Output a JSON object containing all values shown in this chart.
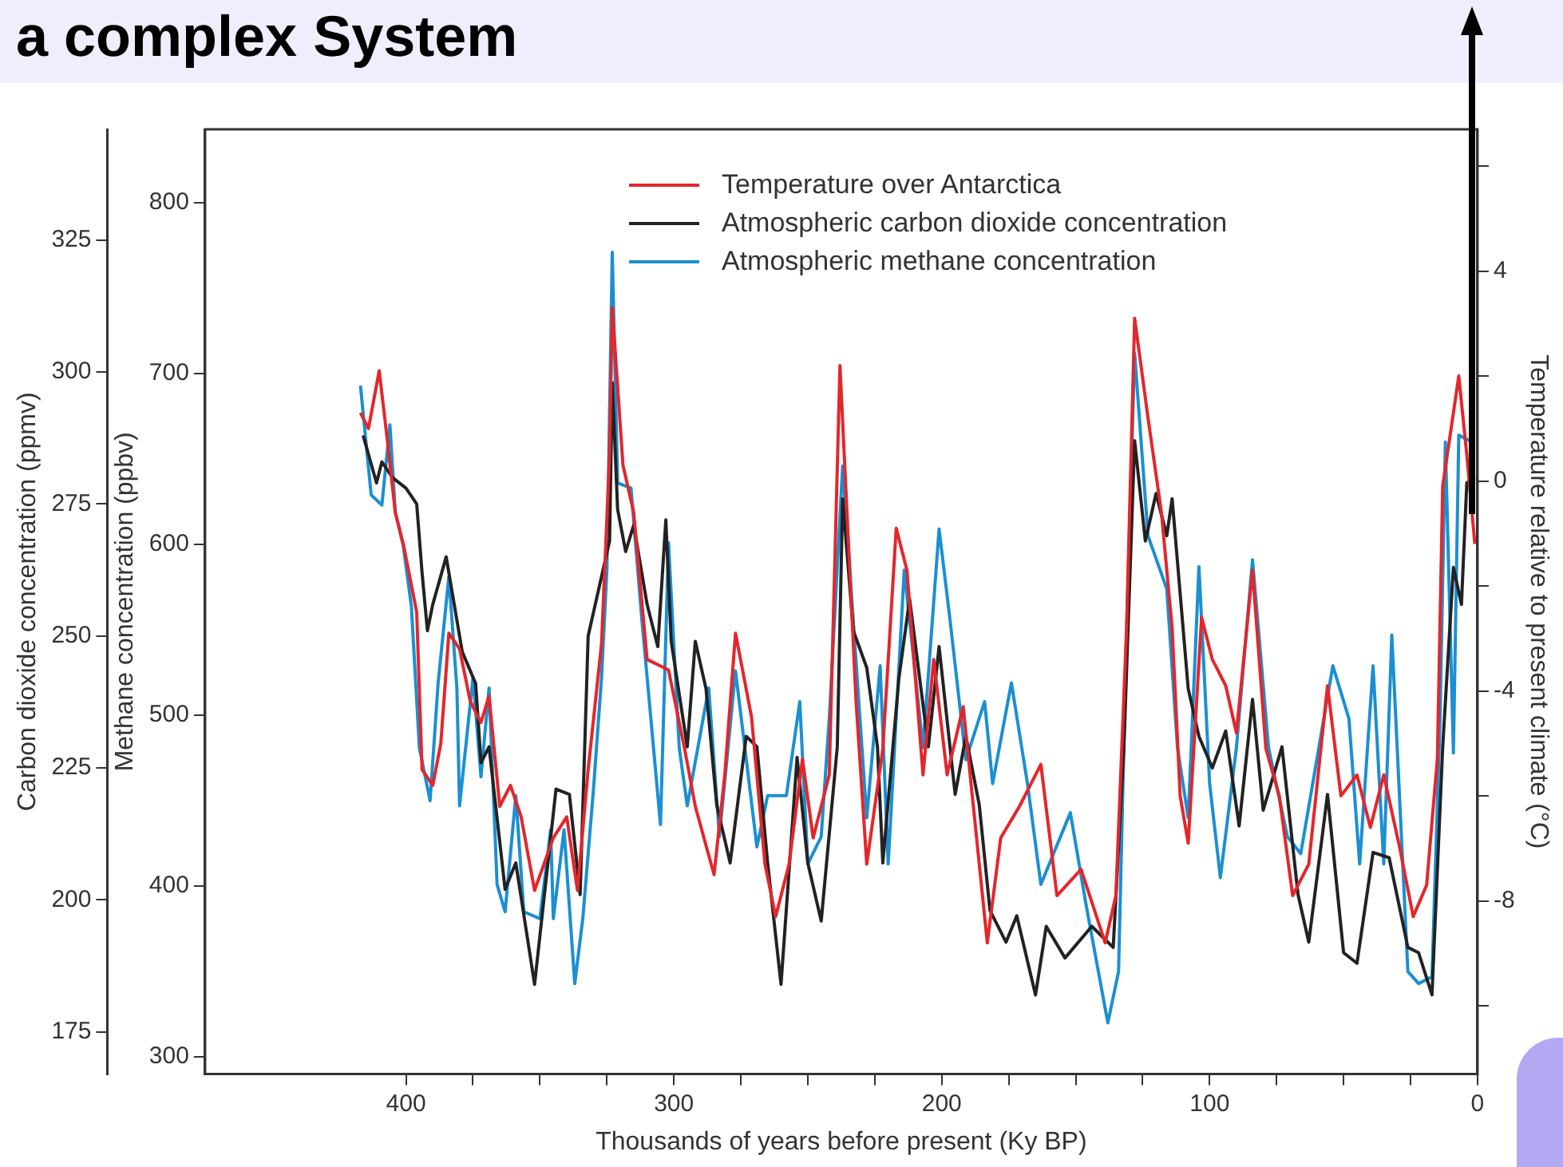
{
  "chart_data": {
    "type": "line",
    "title": "a complex System",
    "xlabel": "Thousands of years before present (Ky BP)",
    "ylabel": "Carbon dioxide concentration (ppmv)",
    "y3label": "Methane concentration (ppbv)",
    "y2label": "Temperature relative to present climate (°C)",
    "xlim": [
      475,
      0
    ],
    "xticks": [
      400,
      {
        "value": 375,
        "label": null
      },
      {
        "value": 350,
        "label": null
      },
      {
        "value": 325,
        "label": null
      },
      300,
      {
        "value": 275,
        "label": null
      },
      {
        "value": 250,
        "label": null
      },
      {
        "value": 225,
        "label": null
      },
      200,
      {
        "value": 175,
        "label": null
      },
      {
        "value": 150,
        "label": null
      },
      {
        "value": 125,
        "label": null
      },
      100,
      {
        "value": 75,
        "label": null
      },
      {
        "value": 50,
        "label": null
      },
      {
        "value": 25,
        "label": null
      },
      0
    ],
    "ylim": [
      167,
      346
    ],
    "yticks": [
      175,
      200,
      225,
      250,
      275,
      300,
      325
    ],
    "y3lim": [
      290,
      843
    ],
    "y3ticks": [
      300,
      400,
      500,
      600,
      700,
      800
    ],
    "y2lim": [
      -11.3,
      6.7
    ],
    "y2ticks": [
      {
        "value": 6,
        "label": null
      },
      4,
      {
        "value": 2,
        "label": null
      },
      0,
      {
        "value": -2,
        "label": null
      },
      -4,
      {
        "value": -6,
        "label": null
      },
      -8,
      {
        "value": -10,
        "label": null
      }
    ],
    "grid": false,
    "legend": "top",
    "marker": "none",
    "line_style": "solid",
    "series": [
      {
        "name": "Temperature over Antarctica",
        "color": "#e4262b",
        "axis": "y2",
        "x": [
          417,
          414,
          410,
          407,
          404,
          401,
          396,
          394,
          390,
          387,
          384,
          380,
          376,
          372,
          369,
          365,
          361,
          357,
          352,
          345,
          340,
          336,
          332,
          327,
          324,
          323,
          319,
          315,
          310,
          302,
          296,
          292,
          285,
          281,
          277,
          271,
          266,
          262,
          257,
          252,
          248,
          242,
          238,
          232,
          228,
          222,
          217,
          213,
          207,
          203,
          198,
          192,
          186,
          183,
          178,
          171,
          163,
          157,
          148,
          139,
          135,
          131,
          128,
          123,
          118,
          114,
          111,
          108,
          103,
          99,
          94,
          90,
          84,
          79,
          74,
          69,
          63,
          56,
          51,
          45,
          40,
          35,
          29,
          24,
          19,
          15,
          13,
          7,
          4,
          1
        ],
        "values": [
          1.3,
          1.0,
          2.1,
          0.8,
          -0.6,
          -1.2,
          -2.5,
          -5.5,
          -5.8,
          -5.0,
          -2.9,
          -3.2,
          -4.2,
          -4.6,
          -4.1,
          -6.2,
          -5.8,
          -6.4,
          -7.8,
          -6.8,
          -6.4,
          -7.8,
          -5.5,
          -3.1,
          0.5,
          3.3,
          0.3,
          -0.6,
          -3.4,
          -3.6,
          -5.1,
          -6.2,
          -7.5,
          -5.6,
          -2.9,
          -4.5,
          -7.3,
          -8.3,
          -7.3,
          -5.3,
          -6.8,
          -5.6,
          2.2,
          -4.2,
          -7.3,
          -5.1,
          -0.9,
          -1.7,
          -5.6,
          -3.4,
          -5.6,
          -4.3,
          -7.3,
          -8.8,
          -6.8,
          -6.2,
          -5.4,
          -7.9,
          -7.4,
          -8.8,
          -7.9,
          -2.8,
          3.1,
          1.2,
          -0.6,
          -2.8,
          -6.0,
          -6.9,
          -2.6,
          -3.4,
          -3.9,
          -4.8,
          -1.7,
          -5.1,
          -6.0,
          -7.9,
          -7.3,
          -3.9,
          -6.0,
          -5.6,
          -6.6,
          -5.6,
          -7.0,
          -8.3,
          -7.7,
          -5.3,
          -0.1,
          2.0,
          0.5,
          -1.2
        ]
      },
      {
        "name": "Atmospheric carbon dioxide concentration",
        "color": "#222222",
        "axis": "y",
        "x": [
          416,
          411,
          409,
          405,
          400,
          396,
          394,
          392,
          390,
          385,
          382,
          379,
          374,
          372,
          369,
          363,
          359,
          352,
          344,
          339,
          335,
          332,
          324,
          323,
          321,
          318,
          315,
          310,
          306,
          303,
          301,
          295,
          292,
          288,
          284,
          279,
          273,
          269,
          265,
          260,
          254,
          250,
          245,
          239,
          237,
          233,
          228,
          224,
          222,
          216,
          212,
          205,
          201,
          195,
          191,
          186,
          182,
          176,
          172,
          165,
          161,
          154,
          144,
          136,
          132,
          128,
          124,
          120,
          116,
          114,
          108,
          104,
          99,
          94,
          89,
          84,
          80,
          73,
          67,
          63,
          56,
          50,
          45,
          39,
          33,
          26,
          22,
          17,
          13,
          9,
          6,
          4,
          1
        ],
        "values": [
          288,
          279,
          283,
          280,
          278,
          275,
          262,
          251,
          256,
          265,
          256,
          247,
          241,
          226,
          229,
          202,
          207,
          184,
          221,
          220,
          201,
          250,
          268,
          298,
          274,
          266,
          271,
          256,
          248,
          272,
          249,
          229,
          249,
          240,
          218,
          207,
          231,
          229,
          207,
          184,
          227,
          207,
          196,
          229,
          276,
          251,
          244,
          229,
          207,
          242,
          257,
          229,
          248,
          220,
          231,
          218,
          198,
          192,
          197,
          182,
          195,
          189,
          195,
          191,
          229,
          287,
          268,
          277,
          269,
          276,
          240,
          231,
          225,
          232,
          214,
          238,
          217,
          229,
          201,
          192,
          220,
          190,
          188,
          209,
          208,
          191,
          190,
          182,
          229,
          263,
          256,
          279,
          280
        ]
      },
      {
        "name": "Atmospheric methane concentration",
        "color": "#1b8fd2",
        "axis": "y3",
        "x": [
          417,
          413,
          409,
          406,
          404,
          401,
          398,
          395,
          391,
          388,
          384,
          381,
          380,
          375,
          372,
          369,
          366,
          363,
          359,
          356,
          350,
          346,
          345,
          341,
          337,
          334,
          330,
          327,
          325,
          323,
          321,
          316,
          312,
          305,
          302,
          298,
          295,
          287,
          283,
          277,
          269,
          265,
          258,
          253,
          250,
          245,
          242,
          237,
          228,
          223,
          220,
          214,
          207,
          201,
          197,
          191,
          184,
          181,
          174,
          168,
          163,
          152,
          146,
          138,
          134,
          131,
          128,
          123,
          116,
          112,
          108,
          104,
          100,
          96,
          90,
          84,
          78,
          71,
          66,
          54,
          48,
          44,
          39,
          35,
          32,
          26,
          22,
          17,
          14,
          12,
          9,
          7,
          2
        ],
        "values": [
          693,
          629,
          623,
          670,
          619,
          599,
          564,
          481,
          450,
          519,
          581,
          516,
          447,
          522,
          464,
          516,
          401,
          385,
          453,
          385,
          381,
          433,
          381,
          433,
          343,
          381,
          457,
          522,
          585,
          771,
          636,
          633,
          557,
          436,
          601,
          481,
          447,
          516,
          429,
          526,
          423,
          453,
          453,
          508,
          413,
          429,
          498,
          646,
          440,
          529,
          413,
          585,
          481,
          609,
          557,
          474,
          508,
          460,
          519,
          460,
          401,
          443,
          388,
          320,
          350,
          550,
          712,
          605,
          574,
          481,
          440,
          587,
          460,
          405,
          481,
          591,
          481,
          429,
          419,
          529,
          498,
          413,
          529,
          413,
          547,
          350,
          343,
          347,
          498,
          660,
          478,
          664,
          660
        ]
      }
    ]
  }
}
